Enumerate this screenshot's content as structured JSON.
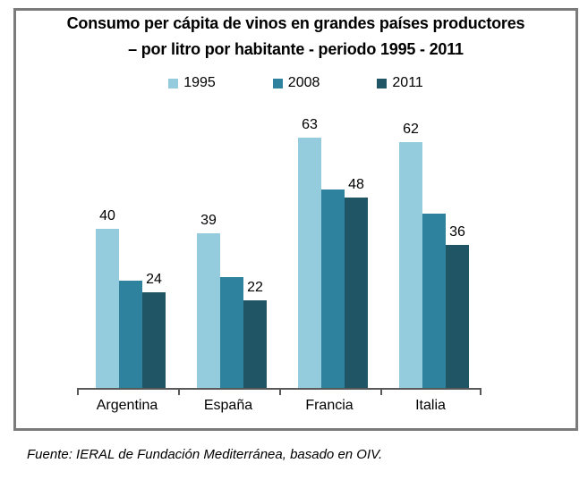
{
  "chart": {
    "title_line1": "Consumo per cápita de vinos en grandes países productores",
    "title_line2": "– por litro por habitante - periodo 1995 - 2011"
  },
  "source": {
    "text": "Fuente: IERAL de Fundación Mediterránea, basado en OIV."
  },
  "colors": {
    "box_border": "#7B7B7B",
    "axis": "#595959",
    "text": "#000000"
  },
  "chart_data": {
    "type": "bar",
    "title": "Consumo per cápita de vinos en grandes países productores",
    "subtitle": "– por litro por habitante - periodo 1995 - 2011",
    "categories": [
      "Argentina",
      "España",
      "Francia",
      "Italia"
    ],
    "series": [
      {
        "name": "1995",
        "color": "#94CCDD",
        "values": [
          40,
          39,
          63,
          62
        ],
        "data_labels_shown": true
      },
      {
        "name": "2008",
        "color": "#2F829D",
        "values": [
          27,
          28,
          50,
          44
        ],
        "data_labels_shown": false
      },
      {
        "name": "2011",
        "color": "#1F5565",
        "values": [
          24,
          22,
          48,
          36
        ],
        "data_labels_shown": true
      }
    ],
    "ylim": [
      0,
      70
    ],
    "grid": false,
    "legend_position": "top",
    "value_unit": "litros por habitante"
  }
}
